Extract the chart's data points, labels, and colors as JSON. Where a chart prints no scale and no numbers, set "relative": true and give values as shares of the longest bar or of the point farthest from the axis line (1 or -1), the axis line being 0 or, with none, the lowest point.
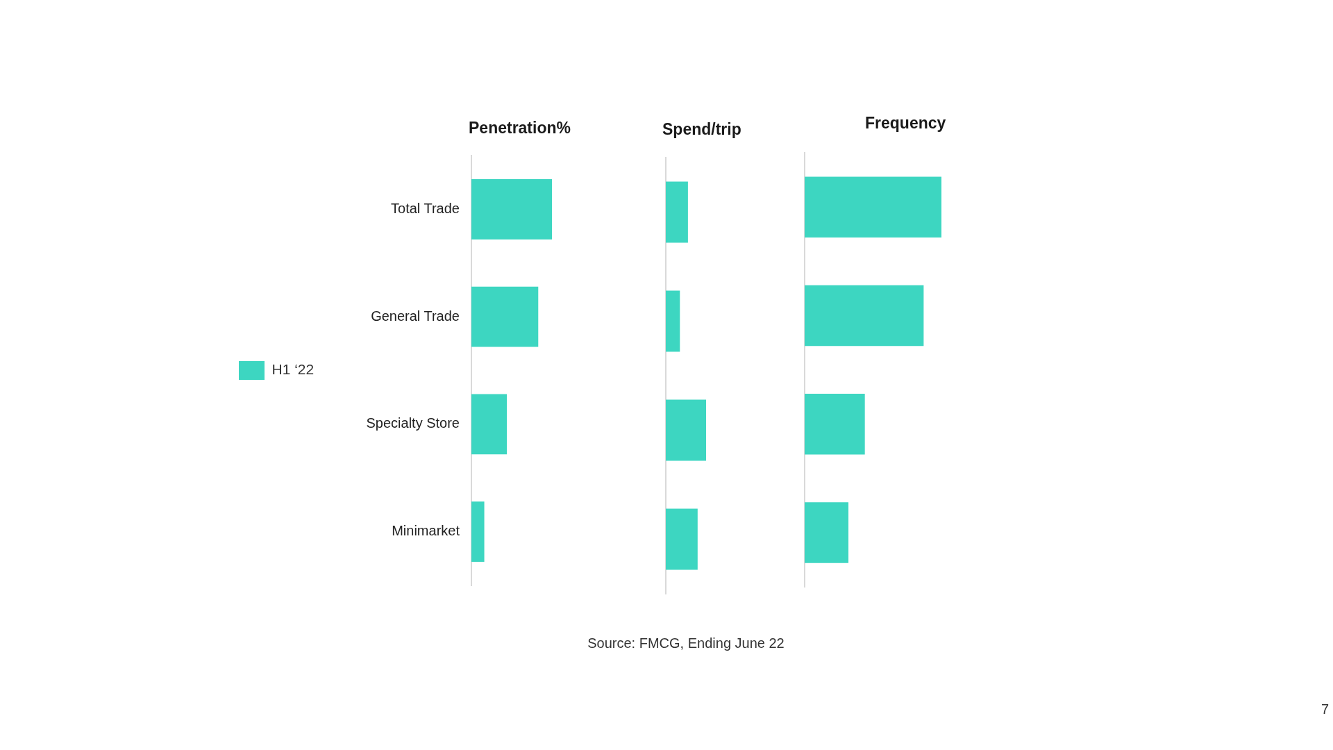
{
  "chart_data": [
    {
      "type": "bar",
      "orientation": "horizontal",
      "relative": true,
      "title": "Penetration%",
      "categories": [
        "Total Trade",
        "General Trade",
        "Specialty Store",
        "Minimarket"
      ],
      "series": [
        {
          "name": "H1 ‘22",
          "color": "#3dd6c1",
          "values": [
            1,
            0.83,
            0.44,
            0.16
          ]
        }
      ],
      "legend": "left",
      "tick_labels": "y",
      "annotations": [
        "Source: FMCG, Ending June 22",
        "7"
      ]
    },
    {
      "type": "bar",
      "orientation": "horizontal",
      "relative": true,
      "title": "Spend/trip",
      "categories": [
        null,
        null,
        null,
        null
      ],
      "color": "#3dd6c1",
      "values": [
        0.55,
        0.35,
        1,
        0.79
      ],
      "tick_labels": false
    },
    {
      "type": "bar",
      "orientation": "horizontal",
      "relative": true,
      "title": "Frequency",
      "categories": [
        null,
        null,
        null,
        null
      ],
      "color": "#3dd6c1",
      "values": [
        1,
        0.87,
        0.44,
        0.32
      ],
      "tick_labels": false
    }
  ]
}
